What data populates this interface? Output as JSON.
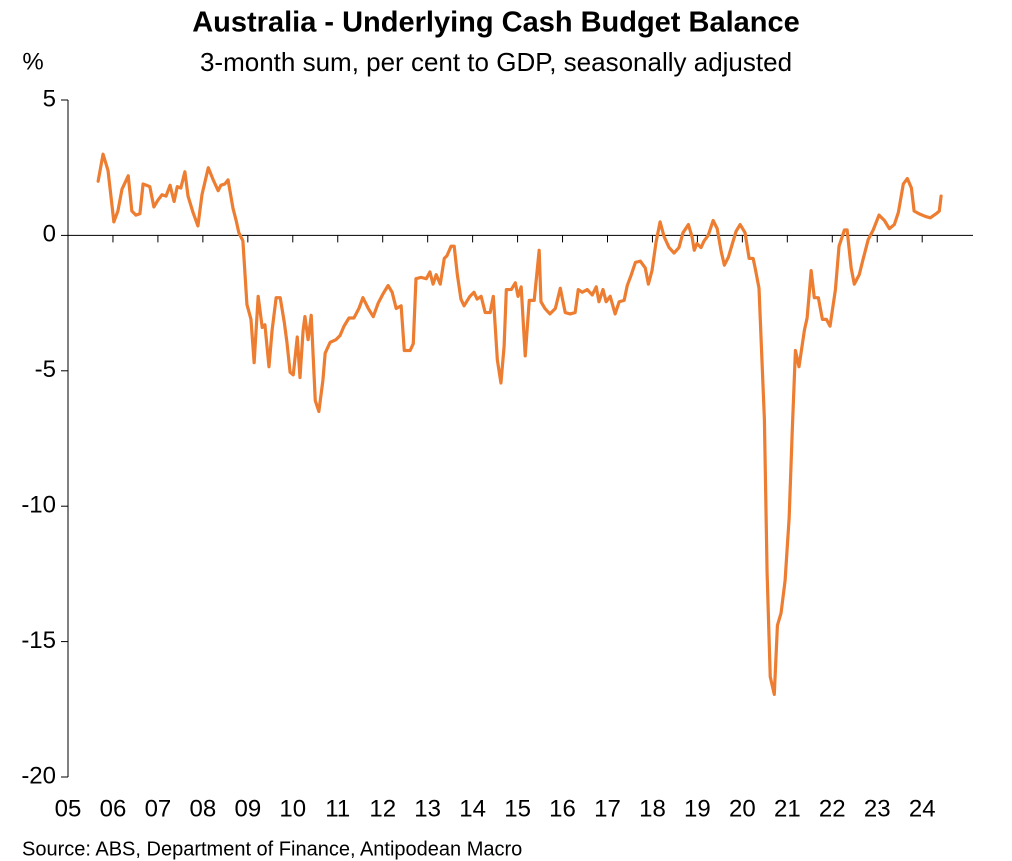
{
  "chart_data": {
    "type": "line",
    "title": "Australia - Underlying Cash Budget Balance",
    "subtitle": "3-month sum, per cent to GDP, seasonally adjusted",
    "y_label": "%",
    "source": "Source: ABS, Department of Finance, Antipodean Macro",
    "color": "#ED7D31",
    "xlim": [
      2005,
      2025.13
    ],
    "xticks": [
      {
        "value": 2005,
        "label": "05"
      },
      {
        "value": 2006,
        "label": "06"
      },
      {
        "value": 2007,
        "label": "07"
      },
      {
        "value": 2008,
        "label": "08"
      },
      {
        "value": 2009,
        "label": "09"
      },
      {
        "value": 2010,
        "label": "10"
      },
      {
        "value": 2011,
        "label": "11"
      },
      {
        "value": 2012,
        "label": "12"
      },
      {
        "value": 2013,
        "label": "13"
      },
      {
        "value": 2014,
        "label": "14"
      },
      {
        "value": 2015,
        "label": "15"
      },
      {
        "value": 2016,
        "label": "16"
      },
      {
        "value": 2017,
        "label": "17"
      },
      {
        "value": 2018,
        "label": "18"
      },
      {
        "value": 2019,
        "label": "19"
      },
      {
        "value": 2020,
        "label": "20"
      },
      {
        "value": 2021,
        "label": "21"
      },
      {
        "value": 2022,
        "label": "22"
      },
      {
        "value": 2023,
        "label": "23"
      },
      {
        "value": 2024,
        "label": "24"
      }
    ],
    "ylim": [
      -20,
      5
    ],
    "yticks": [
      5,
      0,
      -5,
      -10,
      -15,
      -20
    ],
    "x": [
      2005.67,
      2005.78,
      2005.89,
      2006.02,
      2006.11,
      2006.2,
      2006.34,
      2006.42,
      2006.51,
      2006.6,
      2006.67,
      2006.82,
      2006.91,
      2007.0,
      2007.09,
      2007.18,
      2007.27,
      2007.36,
      2007.43,
      2007.51,
      2007.6,
      2007.67,
      2007.78,
      2007.89,
      2007.98,
      2008.12,
      2008.23,
      2008.34,
      2008.4,
      2008.49,
      2008.56,
      2008.67,
      2008.74,
      2008.8,
      2008.89,
      2008.98,
      2009.07,
      2009.14,
      2009.23,
      2009.32,
      2009.38,
      2009.47,
      2009.54,
      2009.63,
      2009.72,
      2009.81,
      2009.87,
      2009.94,
      2010.01,
      2010.1,
      2010.16,
      2010.23,
      2010.27,
      2010.34,
      2010.41,
      2010.5,
      2010.58,
      2010.67,
      2010.72,
      2010.83,
      2010.96,
      2011.05,
      2011.14,
      2011.25,
      2011.36,
      2011.47,
      2011.56,
      2011.68,
      2011.79,
      2011.9,
      2012.01,
      2012.12,
      2012.21,
      2012.3,
      2012.41,
      2012.48,
      2012.61,
      2012.68,
      2012.74,
      2012.85,
      2012.97,
      2013.05,
      2013.12,
      2013.19,
      2013.28,
      2013.37,
      2013.43,
      2013.52,
      2013.59,
      2013.66,
      2013.74,
      2013.81,
      2013.94,
      2014.03,
      2014.1,
      2014.19,
      2014.28,
      2014.39,
      2014.46,
      2014.55,
      2014.63,
      2014.7,
      2014.75,
      2014.86,
      2014.95,
      2015.01,
      2015.08,
      2015.17,
      2015.26,
      2015.37,
      2015.48,
      2015.52,
      2015.61,
      2015.72,
      2015.84,
      2015.95,
      2016.06,
      2016.17,
      2016.28,
      2016.35,
      2016.44,
      2016.55,
      2016.66,
      2016.75,
      2016.81,
      2016.9,
      2016.97,
      2017.06,
      2017.17,
      2017.26,
      2017.37,
      2017.44,
      2017.53,
      2017.62,
      2017.73,
      2017.84,
      2017.91,
      2017.99,
      2018.08,
      2018.17,
      2018.26,
      2018.37,
      2018.48,
      2018.59,
      2018.68,
      2018.8,
      2018.88,
      2018.93,
      2018.99,
      2019.08,
      2019.15,
      2019.24,
      2019.35,
      2019.44,
      2019.53,
      2019.6,
      2019.69,
      2019.77,
      2019.86,
      2019.95,
      2020.06,
      2020.15,
      2020.24,
      2020.29,
      2020.37,
      2020.49,
      2020.55,
      2020.62,
      2020.71,
      2020.78,
      2020.86,
      2020.95,
      2021.04,
      2021.11,
      2021.18,
      2021.26,
      2021.38,
      2021.44,
      2021.53,
      2021.6,
      2021.69,
      2021.78,
      2021.87,
      2021.95,
      2022.07,
      2022.15,
      2022.27,
      2022.33,
      2022.42,
      2022.49,
      2022.6,
      2022.69,
      2022.8,
      2022.91,
      2023.04,
      2023.16,
      2023.27,
      2023.38,
      2023.47,
      2023.58,
      2023.67,
      2023.76,
      2023.82,
      2023.93,
      2024.07,
      2024.18,
      2024.31,
      2024.38,
      2024.42
    ],
    "values": [
      2.0,
      3.0,
      2.4,
      0.5,
      0.9,
      1.7,
      2.2,
      0.9,
      0.75,
      0.8,
      1.9,
      1.8,
      1.05,
      1.3,
      1.5,
      1.45,
      1.85,
      1.25,
      1.8,
      1.75,
      2.35,
      1.45,
      0.85,
      0.35,
      1.5,
      2.5,
      2.05,
      1.65,
      1.85,
      1.9,
      2.05,
      1.0,
      0.55,
      0.1,
      -0.2,
      -2.55,
      -3.1,
      -4.7,
      -2.25,
      -3.4,
      -3.3,
      -4.85,
      -3.5,
      -2.3,
      -2.3,
      -3.2,
      -3.95,
      -5.05,
      -5.15,
      -3.75,
      -5.25,
      -3.5,
      -3.0,
      -3.85,
      -2.95,
      -6.1,
      -6.5,
      -5.35,
      -4.35,
      -3.95,
      -3.85,
      -3.7,
      -3.35,
      -3.05,
      -3.05,
      -2.7,
      -2.3,
      -2.7,
      -3.0,
      -2.5,
      -2.15,
      -1.85,
      -2.1,
      -2.7,
      -2.6,
      -4.25,
      -4.25,
      -4.0,
      -1.6,
      -1.55,
      -1.6,
      -1.35,
      -1.8,
      -1.45,
      -1.8,
      -0.85,
      -0.75,
      -0.4,
      -0.4,
      -1.45,
      -2.35,
      -2.6,
      -2.25,
      -2.1,
      -2.35,
      -2.25,
      -2.85,
      -2.85,
      -2.25,
      -4.6,
      -5.45,
      -4.1,
      -2.0,
      -2.0,
      -1.75,
      -2.25,
      -1.9,
      -4.45,
      -2.4,
      -2.4,
      -0.55,
      -2.45,
      -2.7,
      -2.9,
      -2.7,
      -1.95,
      -2.85,
      -2.9,
      -2.85,
      -2.0,
      -2.1,
      -2.0,
      -2.2,
      -1.9,
      -2.45,
      -2.0,
      -2.45,
      -2.25,
      -2.9,
      -2.45,
      -2.4,
      -1.85,
      -1.45,
      -1.0,
      -0.95,
      -1.2,
      -1.8,
      -1.3,
      -0.25,
      0.5,
      -0.05,
      -0.45,
      -0.65,
      -0.45,
      0.1,
      0.4,
      -0.05,
      -0.55,
      -0.3,
      -0.45,
      -0.2,
      0.0,
      0.55,
      0.25,
      -0.6,
      -1.1,
      -0.8,
      -0.35,
      0.15,
      0.4,
      0.1,
      -0.85,
      -0.85,
      -1.25,
      -1.95,
      -6.8,
      -12.45,
      -16.3,
      -16.95,
      -14.4,
      -13.95,
      -12.75,
      -10.45,
      -7.2,
      -4.25,
      -4.85,
      -3.5,
      -3.05,
      -1.3,
      -2.3,
      -2.3,
      -3.1,
      -3.1,
      -3.35,
      -2.0,
      -0.4,
      0.2,
      0.2,
      -1.2,
      -1.8,
      -1.45,
      -0.85,
      -0.15,
      0.2,
      0.75,
      0.55,
      0.25,
      0.4,
      0.85,
      1.9,
      2.1,
      1.75,
      0.9,
      0.8,
      0.7,
      0.65,
      0.8,
      0.9,
      1.45
    ]
  }
}
